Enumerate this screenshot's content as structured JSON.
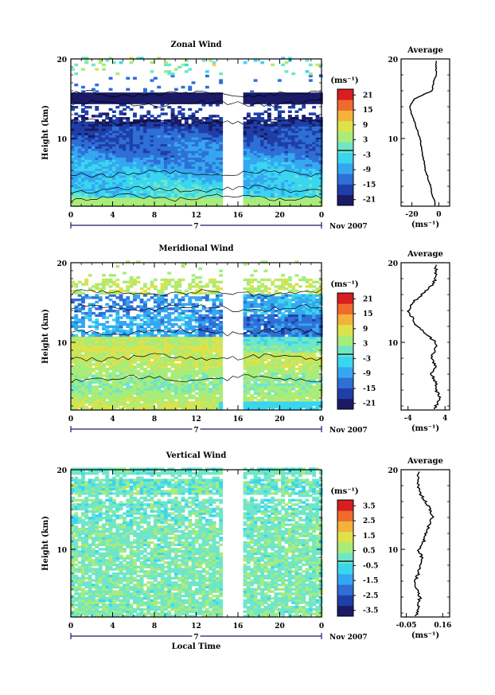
{
  "figure": {
    "colors": {
      "palette": [
        "#1a1a66",
        "#1f3fa8",
        "#2f6fd6",
        "#35a7f0",
        "#3ad6f0",
        "#6fe6c8",
        "#a8ec7a",
        "#dde24a",
        "#f4b23a",
        "#f06a2e",
        "#d81e1e"
      ],
      "contour": "#000000",
      "axis_accent": "#1a1a66"
    },
    "panels": [
      {
        "title": "Zonal Wind",
        "ylabel": "Height (km)",
        "xticks": [
          "0",
          "4",
          "8",
          "12",
          "16",
          "20",
          "0"
        ],
        "yticks": [
          "20",
          "10"
        ],
        "date_text": "7",
        "month_text": "Nov 2007",
        "xlabel": "",
        "units": "(ms⁻¹)",
        "colorbar_ticks": [
          "21",
          "15",
          "9",
          "3",
          "-3",
          "-9",
          "-15",
          "-21"
        ],
        "avg_title": "Average",
        "avg_yticks": [
          "20",
          "10"
        ],
        "avg_xticks": [
          "-20",
          "0"
        ],
        "avg_units": "(ms⁻¹)"
      },
      {
        "title": "Meridional Wind",
        "ylabel": "Height (km)",
        "xticks": [
          "0",
          "4",
          "8",
          "12",
          "16",
          "20",
          "0"
        ],
        "yticks": [
          "20",
          "10"
        ],
        "date_text": "7",
        "month_text": "Nov 2007",
        "xlabel": "",
        "units": "(ms⁻¹)",
        "colorbar_ticks": [
          "21",
          "15",
          "9",
          "3",
          "-3",
          "-9",
          "-15",
          "-21"
        ],
        "avg_title": "Average",
        "avg_yticks": [
          "20",
          "10"
        ],
        "avg_xticks": [
          "-4",
          "4"
        ],
        "avg_units": "(ms⁻¹)"
      },
      {
        "title": "Vertical Wind",
        "ylabel": "Height (km)",
        "xticks": [
          "0",
          "4",
          "8",
          "12",
          "16",
          "20",
          "0"
        ],
        "yticks": [
          "20",
          "10"
        ],
        "date_text": "7",
        "month_text": "Nov 2007",
        "xlabel": "Local Time",
        "units": "(ms⁻¹)",
        "colorbar_ticks": [
          "3.5",
          "2.5",
          "1.5",
          "0.5",
          "-0.5",
          "-1.5",
          "-2.5",
          "-3.5"
        ],
        "avg_title": "Average",
        "avg_yticks": [
          "20",
          "10"
        ],
        "avg_xticks": [
          "-0.05",
          "0.16"
        ],
        "avg_units": "(ms⁻¹)"
      }
    ]
  },
  "chart_data": [
    {
      "type": "heatmap",
      "title": "Zonal Wind",
      "ylabel": "Height (km)",
      "x_range_local_time_h": [
        0,
        24
      ],
      "y_range_km": [
        1.5,
        20
      ],
      "color_range": [
        -21,
        21
      ],
      "colorbar_levels": [
        21,
        15,
        9,
        3,
        -3,
        -9,
        -15,
        -21
      ],
      "gap_local_time_h": [
        [
          14.8,
          15.3
        ],
        [
          15.8,
          16.2
        ]
      ],
      "profile_km": [
        2,
        3,
        4,
        5,
        6,
        7,
        8,
        9,
        10,
        11,
        12,
        13,
        14,
        15,
        16,
        17,
        18
      ],
      "profile_ms": [
        -3,
        -5,
        -6,
        -8,
        -10,
        -11,
        -12,
        -13,
        -14,
        -16,
        -18,
        -20,
        -22,
        -18,
        -5,
        -4,
        -2
      ]
    },
    {
      "type": "heatmap",
      "title": "Meridional Wind",
      "ylabel": "Height (km)",
      "x_range_local_time_h": [
        0,
        24
      ],
      "y_range_km": [
        1.5,
        20
      ],
      "color_range": [
        -21,
        21
      ],
      "colorbar_levels": [
        21,
        15,
        9,
        3,
        -3,
        -9,
        -15,
        -21
      ],
      "gap_local_time_h": [
        [
          14.8,
          15.3
        ],
        [
          15.8,
          16.2
        ]
      ],
      "profile_km": [
        2,
        3,
        4,
        5,
        6,
        7,
        8,
        9,
        10,
        11,
        12,
        13,
        14,
        15,
        16,
        17,
        18
      ],
      "profile_ms": [
        2,
        3,
        2,
        2,
        1,
        2,
        1,
        2,
        2,
        0,
        -2,
        -3,
        -4,
        -3,
        -1,
        1,
        2
      ]
    },
    {
      "type": "heatmap",
      "title": "Vertical Wind",
      "ylabel": "Height (km)",
      "xlabel": "Local Time",
      "x_range_local_time_h": [
        0,
        24
      ],
      "y_range_km": [
        1.5,
        20
      ],
      "color_range": [
        -3.5,
        3.5
      ],
      "colorbar_levels": [
        3.5,
        2.5,
        1.5,
        0.5,
        -0.5,
        -1.5,
        -2.5,
        -3.5
      ],
      "gap_local_time_h": [
        [
          14.8,
          15.3
        ],
        [
          15.8,
          16.2
        ]
      ],
      "profile_km": [
        2,
        3,
        4,
        5,
        6,
        7,
        8,
        9,
        10,
        11,
        12,
        13,
        14,
        15,
        16,
        17,
        18
      ],
      "profile_ms": [
        0.01,
        0.02,
        0.03,
        0.01,
        0.0,
        0.02,
        0.03,
        0.04,
        0.02,
        0.05,
        0.06,
        0.08,
        0.1,
        0.09,
        0.06,
        0.03,
        0.02
      ]
    }
  ]
}
